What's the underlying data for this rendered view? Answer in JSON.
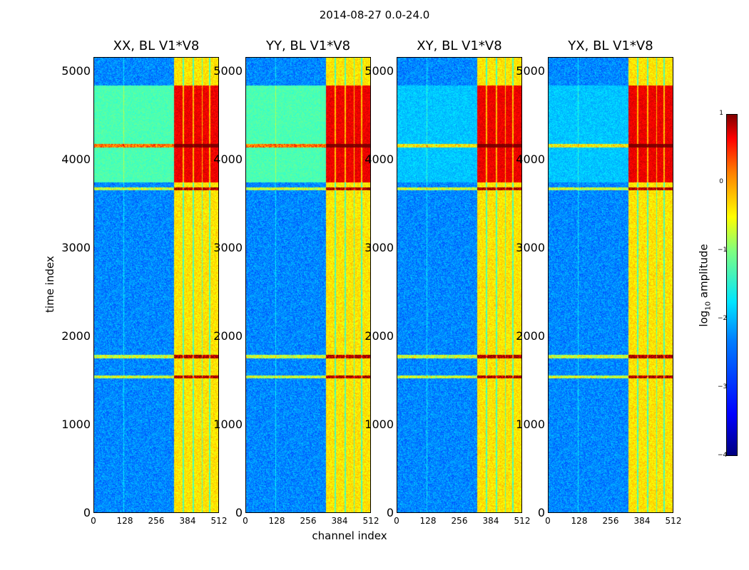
{
  "title": "2014-08-27 0.0-24.0",
  "chart_data": {
    "type": "heatmap",
    "title": "2014-08-27 0.0-24.0",
    "xlabel": "channel index",
    "ylabel": "time index",
    "xlim": [
      0,
      512
    ],
    "ylim": [
      0,
      5160
    ],
    "xticks": [
      "0",
      "128",
      "256",
      "384",
      "512"
    ],
    "yticks": [
      "0",
      "1000",
      "2000",
      "3000",
      "4000",
      "5000"
    ],
    "panels": [
      {
        "title": "XX, BL V1*V8",
        "bright_block": [
          3750,
          4850
        ]
      },
      {
        "title": "YY, BL V1*V8",
        "bright_block": [
          3750,
          4850
        ]
      },
      {
        "title": "XY, BL V1*V8",
        "bright_block": [
          3750,
          4850
        ]
      },
      {
        "title": "YX, BL V1*V8",
        "bright_block": [
          3750,
          4850
        ]
      }
    ],
    "rfi_rows": [
      1550,
      1780,
      3680,
      4170
    ],
    "bright_channels": [
      [
        320,
        512
      ]
    ],
    "colorbar": {
      "label_main": "log",
      "label_sub": "10",
      "label_rest": " amplitude",
      "range": [
        -4,
        1
      ],
      "ticks": [
        "1",
        "0",
        "−1",
        "−2",
        "−3",
        "−4"
      ]
    }
  }
}
